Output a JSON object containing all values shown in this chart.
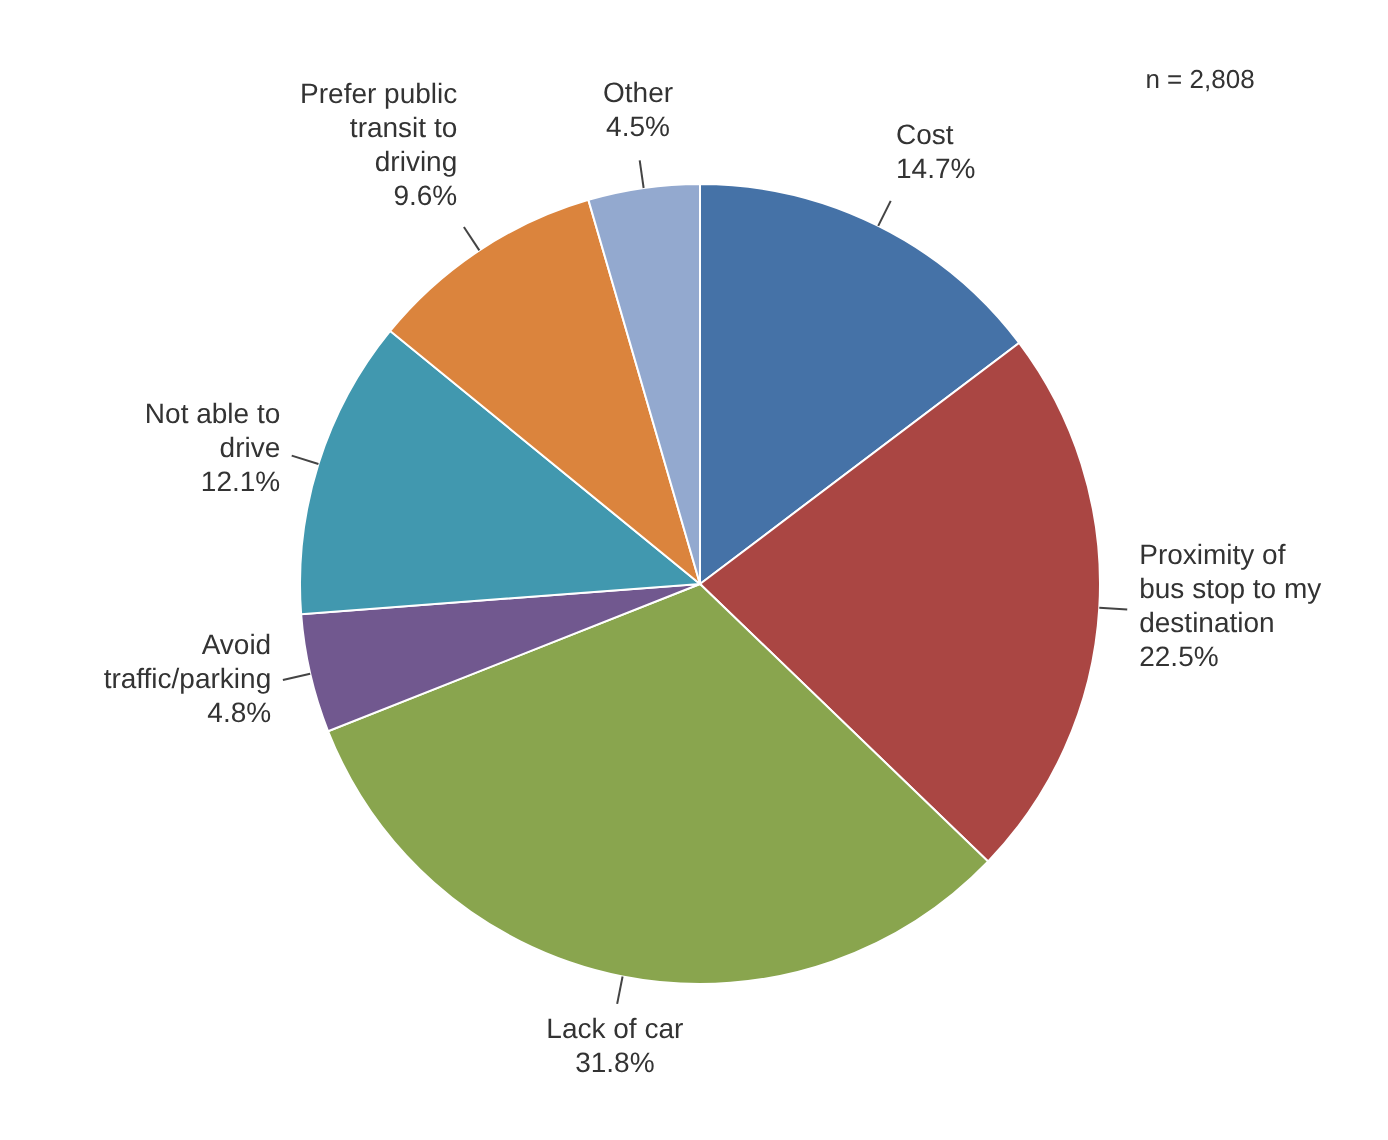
{
  "chart_data": {
    "type": "pie",
    "categories": [
      "Cost",
      "Proximity of bus stop to my destination",
      "Lack of car",
      "Avoid traffic/parking",
      "Not able to drive",
      "Prefer public transit to driving",
      "Other"
    ],
    "values": [
      14.7,
      22.5,
      31.8,
      4.8,
      12.1,
      9.6,
      4.5
    ],
    "value_labels": [
      "14.7%",
      "22.5%",
      "31.8%",
      "4.8%",
      "12.1%",
      "9.6%",
      "4.5%"
    ],
    "colors": [
      "#4572a7",
      "#aa4643",
      "#89a54e",
      "#71588f",
      "#4198af",
      "#db843d",
      "#93a9cf"
    ],
    "annotations": [
      "n = 2,808"
    ]
  }
}
